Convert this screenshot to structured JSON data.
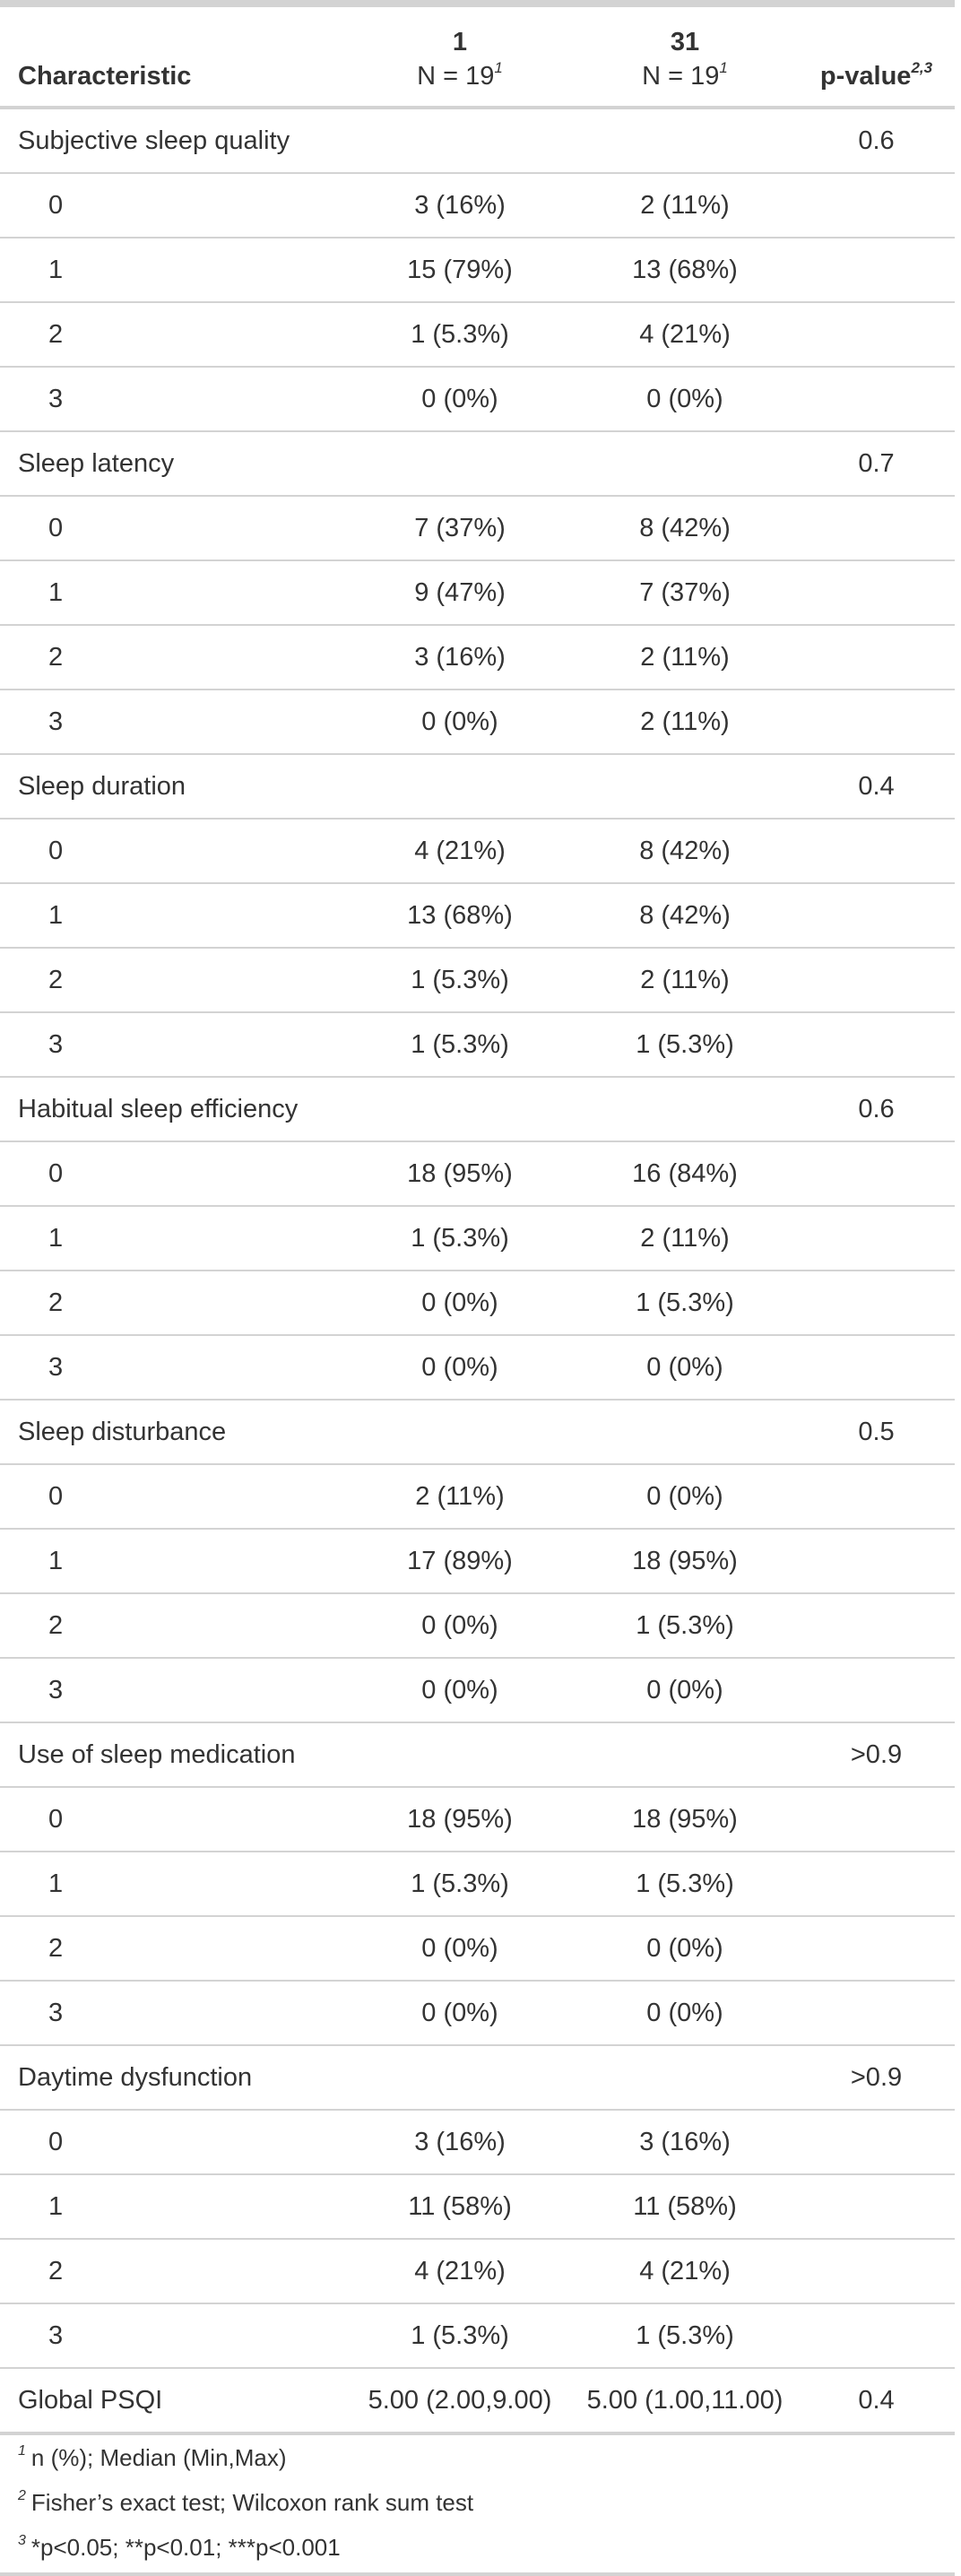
{
  "header": {
    "characteristic": "Characteristic",
    "group1_name": "1",
    "group1_n": "N = 19",
    "group1_mark": "1",
    "group2_name": "31",
    "group2_n": "N = 19",
    "group2_mark": "1",
    "pvalue": "p-value",
    "pvalue_mark": "2,3"
  },
  "rows": [
    {
      "label": "Subjective sleep quality",
      "g1": "",
      "g2": "",
      "p": "0.6",
      "level": "var"
    },
    {
      "label": "0",
      "g1": "3 (16%)",
      "g2": "2 (11%)",
      "p": "",
      "level": "sub"
    },
    {
      "label": "1",
      "g1": "15 (79%)",
      "g2": "13 (68%)",
      "p": "",
      "level": "sub"
    },
    {
      "label": "2",
      "g1": "1 (5.3%)",
      "g2": "4 (21%)",
      "p": "",
      "level": "sub"
    },
    {
      "label": "3",
      "g1": "0 (0%)",
      "g2": "0 (0%)",
      "p": "",
      "level": "sub"
    },
    {
      "label": "Sleep latency",
      "g1": "",
      "g2": "",
      "p": "0.7",
      "level": "var"
    },
    {
      "label": "0",
      "g1": "7 (37%)",
      "g2": "8 (42%)",
      "p": "",
      "level": "sub"
    },
    {
      "label": "1",
      "g1": "9 (47%)",
      "g2": "7 (37%)",
      "p": "",
      "level": "sub"
    },
    {
      "label": "2",
      "g1": "3 (16%)",
      "g2": "2 (11%)",
      "p": "",
      "level": "sub"
    },
    {
      "label": "3",
      "g1": "0 (0%)",
      "g2": "2 (11%)",
      "p": "",
      "level": "sub"
    },
    {
      "label": "Sleep duration",
      "g1": "",
      "g2": "",
      "p": "0.4",
      "level": "var"
    },
    {
      "label": "0",
      "g1": "4 (21%)",
      "g2": "8 (42%)",
      "p": "",
      "level": "sub"
    },
    {
      "label": "1",
      "g1": "13 (68%)",
      "g2": "8 (42%)",
      "p": "",
      "level": "sub"
    },
    {
      "label": "2",
      "g1": "1 (5.3%)",
      "g2": "2 (11%)",
      "p": "",
      "level": "sub"
    },
    {
      "label": "3",
      "g1": "1 (5.3%)",
      "g2": "1 (5.3%)",
      "p": "",
      "level": "sub"
    },
    {
      "label": "Habitual sleep efficiency",
      "g1": "",
      "g2": "",
      "p": "0.6",
      "level": "var"
    },
    {
      "label": "0",
      "g1": "18 (95%)",
      "g2": "16 (84%)",
      "p": "",
      "level": "sub"
    },
    {
      "label": "1",
      "g1": "1 (5.3%)",
      "g2": "2 (11%)",
      "p": "",
      "level": "sub"
    },
    {
      "label": "2",
      "g1": "0 (0%)",
      "g2": "1 (5.3%)",
      "p": "",
      "level": "sub"
    },
    {
      "label": "3",
      "g1": "0 (0%)",
      "g2": "0 (0%)",
      "p": "",
      "level": "sub"
    },
    {
      "label": "Sleep disturbance",
      "g1": "",
      "g2": "",
      "p": "0.5",
      "level": "var"
    },
    {
      "label": "0",
      "g1": "2 (11%)",
      "g2": "0 (0%)",
      "p": "",
      "level": "sub"
    },
    {
      "label": "1",
      "g1": "17 (89%)",
      "g2": "18 (95%)",
      "p": "",
      "level": "sub"
    },
    {
      "label": "2",
      "g1": "0 (0%)",
      "g2": "1 (5.3%)",
      "p": "",
      "level": "sub"
    },
    {
      "label": "3",
      "g1": "0 (0%)",
      "g2": "0 (0%)",
      "p": "",
      "level": "sub"
    },
    {
      "label": "Use of sleep medication",
      "g1": "",
      "g2": "",
      "p": ">0.9",
      "level": "var"
    },
    {
      "label": "0",
      "g1": "18 (95%)",
      "g2": "18 (95%)",
      "p": "",
      "level": "sub"
    },
    {
      "label": "1",
      "g1": "1 (5.3%)",
      "g2": "1 (5.3%)",
      "p": "",
      "level": "sub"
    },
    {
      "label": "2",
      "g1": "0 (0%)",
      "g2": "0 (0%)",
      "p": "",
      "level": "sub"
    },
    {
      "label": "3",
      "g1": "0 (0%)",
      "g2": "0 (0%)",
      "p": "",
      "level": "sub"
    },
    {
      "label": "Daytime dysfunction",
      "g1": "",
      "g2": "",
      "p": ">0.9",
      "level": "var"
    },
    {
      "label": "0",
      "g1": "3 (16%)",
      "g2": "3 (16%)",
      "p": "",
      "level": "sub"
    },
    {
      "label": "1",
      "g1": "11 (58%)",
      "g2": "11 (58%)",
      "p": "",
      "level": "sub"
    },
    {
      "label": "2",
      "g1": "4 (21%)",
      "g2": "4 (21%)",
      "p": "",
      "level": "sub"
    },
    {
      "label": "3",
      "g1": "1 (5.3%)",
      "g2": "1 (5.3%)",
      "p": "",
      "level": "sub"
    },
    {
      "label": "Global PSQI",
      "g1": "5.00 (2.00,9.00)",
      "g2": "5.00 (1.00,11.00)",
      "p": "0.4",
      "level": "var"
    }
  ],
  "footnotes": [
    {
      "mark": "1",
      "text": "n (%); Median (Min,Max)"
    },
    {
      "mark": "2",
      "text": "Fisher’s exact test; Wilcoxon rank sum test"
    },
    {
      "mark": "3",
      "text": "*p<0.05; **p<0.01; ***p<0.001"
    }
  ]
}
